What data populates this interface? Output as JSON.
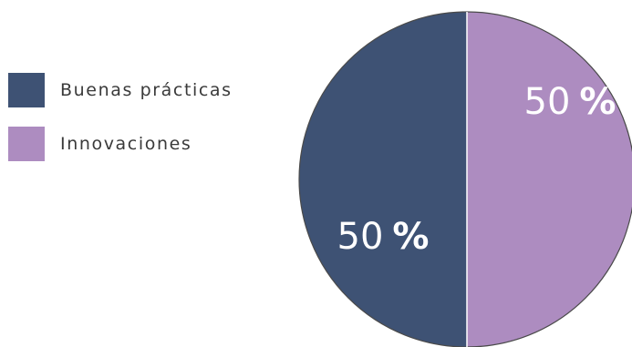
{
  "chart_data": {
    "type": "pie",
    "title": "",
    "legend_position": "left",
    "slices": [
      {
        "name": "Buenas prácticas",
        "value": 50,
        "label_number": "50",
        "label_symbol": "%",
        "color": "#3e5274"
      },
      {
        "name": "Innovaciones",
        "value": 50,
        "label_number": "50",
        "label_symbol": "%",
        "color": "#ad8cc0"
      }
    ]
  }
}
